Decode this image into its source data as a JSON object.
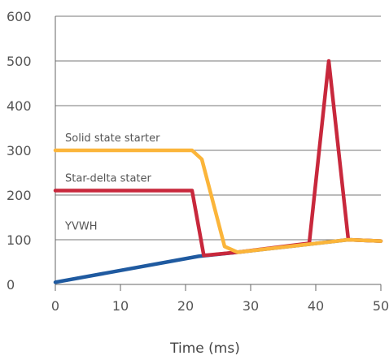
{
  "chart_data": {
    "type": "line",
    "title": "",
    "xlabel": "Time (ms)",
    "ylabel": "",
    "xlim": [
      0,
      50
    ],
    "ylim": [
      0,
      600
    ],
    "xticks": [
      0,
      10,
      20,
      30,
      40,
      50
    ],
    "yticks": [
      0,
      100,
      200,
      300,
      400,
      500,
      600
    ],
    "grid": true,
    "series": [
      {
        "name": "YVWH",
        "color": "#1f5aa0",
        "points": [
          [
            0,
            5
          ],
          [
            22,
            63
          ],
          [
            28,
            72
          ],
          [
            39,
            90
          ],
          [
            45,
            100
          ],
          [
            50,
            97
          ]
        ]
      },
      {
        "name": "Star-delta stater",
        "color": "#c8283c",
        "points": [
          [
            0,
            210
          ],
          [
            21,
            210
          ],
          [
            22.8,
            65
          ],
          [
            28,
            72
          ],
          [
            39,
            92
          ],
          [
            42,
            500
          ],
          [
            45,
            100
          ],
          [
            50,
            97
          ]
        ]
      },
      {
        "name": "Solid state starter",
        "color": "#fbb53a",
        "points": [
          [
            0,
            300
          ],
          [
            21,
            300
          ],
          [
            22.5,
            280
          ],
          [
            26,
            85
          ],
          [
            28,
            72
          ],
          [
            39,
            90
          ],
          [
            45,
            100
          ],
          [
            50,
            97
          ]
        ]
      }
    ],
    "annotations": [
      {
        "text": "Solid state starter",
        "x": 1.5,
        "y": 320
      },
      {
        "text": "Star-delta stater",
        "x": 1.5,
        "y": 230
      },
      {
        "text": "YVWH",
        "x": 1.5,
        "y": 123
      }
    ]
  }
}
